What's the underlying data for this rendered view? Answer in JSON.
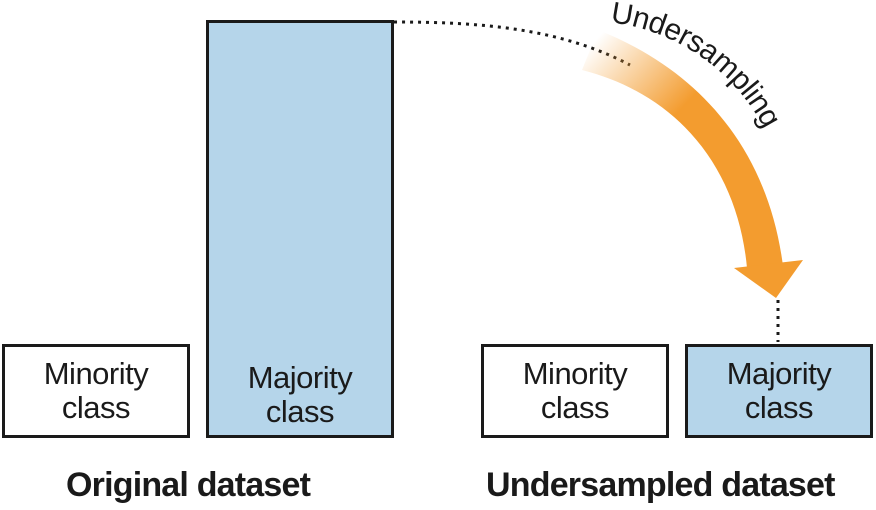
{
  "original": {
    "minority": {
      "line1": "Minority",
      "line2": "class"
    },
    "majority": {
      "line1": "Majority",
      "line2": "class"
    },
    "caption": "Original dataset"
  },
  "undersampled": {
    "minority": {
      "line1": "Minority",
      "line2": "class"
    },
    "majority": {
      "line1": "Majority",
      "line2": "class"
    },
    "caption": "Undersampled dataset"
  },
  "arrow": {
    "label": "Undersampling",
    "color": "#f39c2f"
  },
  "colors": {
    "majority_fill": "#b5d5ea",
    "minority_fill": "#ffffff",
    "border": "#1a1a1a"
  }
}
